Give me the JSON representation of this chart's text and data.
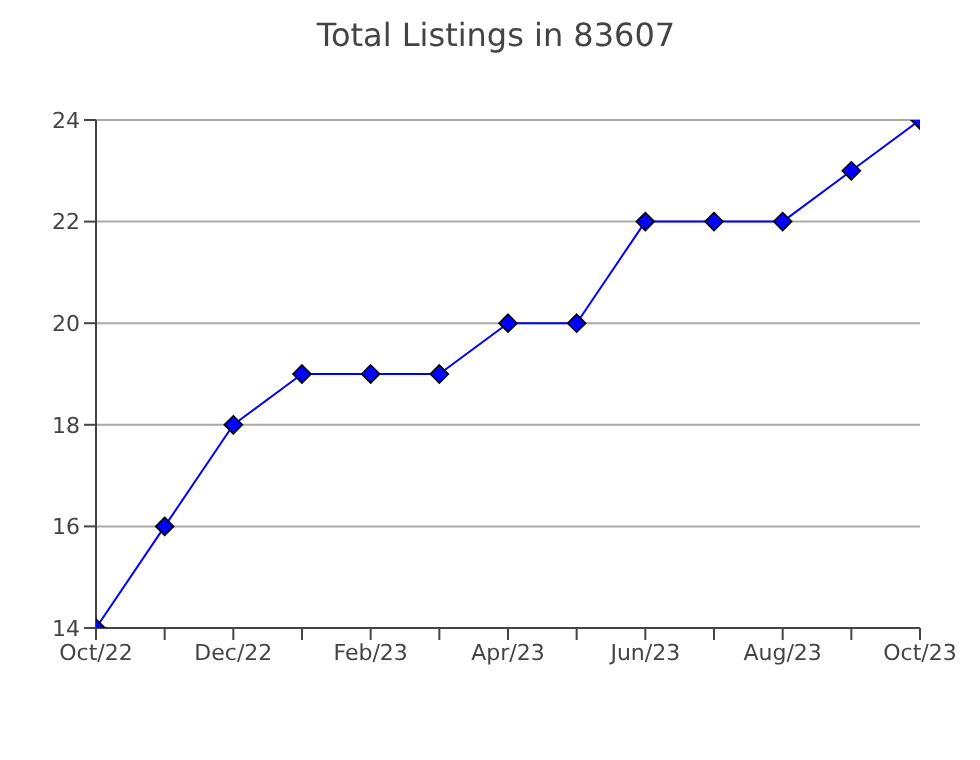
{
  "chart_data": {
    "type": "line",
    "title": "Total Listings in 83607",
    "categories": [
      "Oct/22",
      null,
      "Dec/22",
      null,
      "Feb/23",
      null,
      "Apr/23",
      null,
      "Jun/23",
      null,
      "Aug/23",
      null,
      "Oct/23"
    ],
    "values": [
      14,
      16,
      18,
      19,
      19,
      19,
      20,
      20,
      22,
      22,
      22,
      23,
      24
    ],
    "color": "#0000ff",
    "marker": "diamond",
    "ylim": [
      14,
      24
    ],
    "yticks": [
      14,
      16,
      18,
      20,
      22,
      24
    ],
    "grid": "y"
  }
}
